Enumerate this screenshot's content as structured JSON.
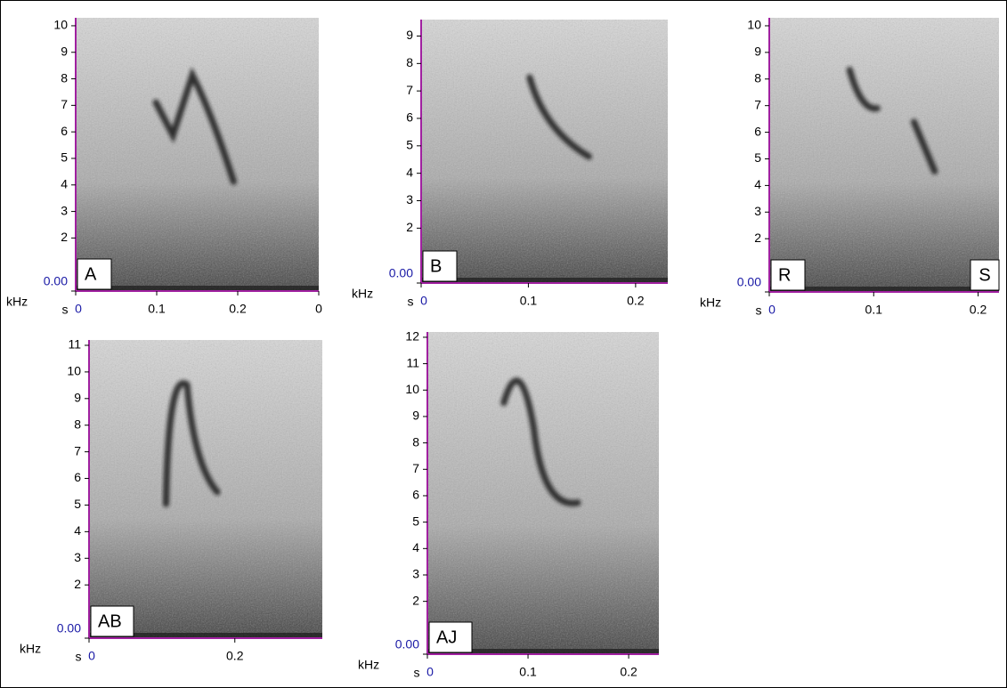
{
  "chart_data": [
    {
      "type": "spectrogram",
      "label": "A",
      "ylabel": "kHz",
      "xlabel": "s",
      "ylim": [
        0,
        10.3
      ],
      "yticks": [
        {
          "value": 0,
          "label": "0.00"
        },
        2,
        3,
        4,
        5,
        6,
        7,
        8,
        9,
        10
      ],
      "xlim": [
        0,
        0.3
      ],
      "xticks": [
        0,
        0.1,
        0.2,
        {
          "value": 0.3,
          "label": "0"
        }
      ]
    },
    {
      "type": "spectrogram",
      "label": "B",
      "ylabel": "kHz",
      "xlabel": "s",
      "ylim": [
        0,
        9.6
      ],
      "yticks": [
        {
          "value": 0,
          "label": "0.00"
        },
        2,
        3,
        4,
        5,
        6,
        7,
        8,
        9
      ],
      "xlim": [
        0,
        0.23
      ],
      "xticks": [
        0,
        0.1,
        0.2
      ]
    },
    {
      "type": "spectrogram",
      "label": "R",
      "corner_label": "S",
      "ylabel": "kHz",
      "xlabel": "s",
      "ylim": [
        0,
        10.3
      ],
      "yticks": [
        {
          "value": 0,
          "label": "0.00"
        },
        2,
        3,
        4,
        5,
        6,
        7,
        8,
        9,
        10
      ],
      "xlim": [
        0,
        0.22
      ],
      "xticks": [
        0,
        0.1,
        0.2
      ]
    },
    {
      "type": "spectrogram",
      "label": "AB",
      "ylabel": "kHz",
      "xlabel": "s",
      "ylim": [
        0,
        11.2
      ],
      "yticks": [
        {
          "value": 0,
          "label": "0.00"
        },
        2,
        3,
        4,
        5,
        6,
        7,
        8,
        9,
        10,
        11
      ],
      "xlim": [
        0,
        0.32
      ],
      "xticks": [
        0,
        0.2
      ]
    },
    {
      "type": "spectrogram",
      "label": "AJ",
      "ylabel": "kHz",
      "xlabel": "s",
      "ylim": [
        0,
        12.2
      ],
      "yticks": [
        {
          "value": 0,
          "label": "0.00"
        },
        2,
        3,
        4,
        5,
        6,
        7,
        8,
        9,
        10,
        11,
        12
      ],
      "xlim": [
        0,
        0.23
      ],
      "xticks": [
        0,
        0.1,
        0.2
      ]
    }
  ]
}
